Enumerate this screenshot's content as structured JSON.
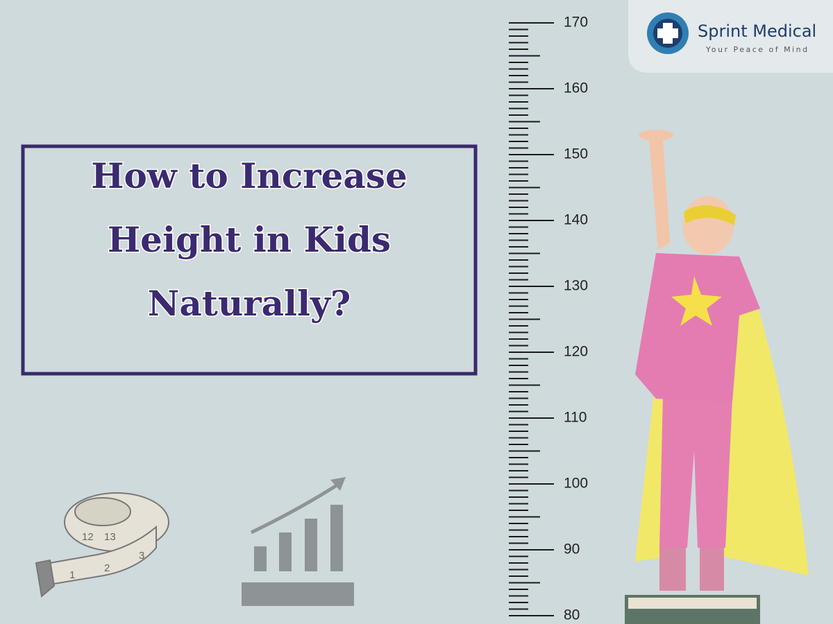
{
  "header": {
    "brand": "Sprint Medical",
    "tagline": "Your Peace of Mind"
  },
  "title": {
    "lines": [
      "How to Increase",
      "Height in Kids",
      "Naturally?"
    ]
  },
  "ruler": {
    "labels": [
      170,
      160,
      150,
      140,
      130,
      120,
      110,
      100,
      90,
      80
    ]
  },
  "tape": {
    "labels": [
      "12",
      "13",
      "3",
      "1",
      "2"
    ]
  }
}
